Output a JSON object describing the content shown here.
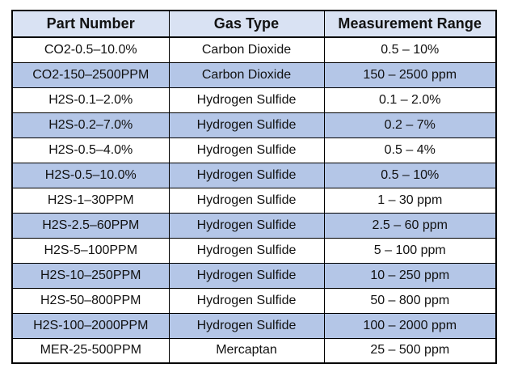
{
  "colors": {
    "header_bg": "#d9e2f3",
    "row_alt_bg": "#b4c6e7",
    "border": "#000000",
    "text": "#111111",
    "page_bg": "#ffffff"
  },
  "table": {
    "columns": [
      {
        "key": "part_number",
        "label": "Part Number"
      },
      {
        "key": "gas_type",
        "label": "Gas Type"
      },
      {
        "key": "measurement_range",
        "label": "Measurement Range"
      }
    ],
    "rows": [
      {
        "part_number": "CO2-0.5–10.0%",
        "gas_type": "Carbon Dioxide",
        "measurement_range": "0.5 – 10%"
      },
      {
        "part_number": "CO2-150–2500PPM",
        "gas_type": "Carbon Dioxide",
        "measurement_range": "150 – 2500 ppm"
      },
      {
        "part_number": "H2S-0.1–2.0%",
        "gas_type": "Hydrogen Sulfide",
        "measurement_range": "0.1 – 2.0%"
      },
      {
        "part_number": "H2S-0.2–7.0%",
        "gas_type": "Hydrogen Sulfide",
        "measurement_range": "0.2 – 7%"
      },
      {
        "part_number": "H2S-0.5–4.0%",
        "gas_type": "Hydrogen Sulfide",
        "measurement_range": "0.5 – 4%"
      },
      {
        "part_number": "H2S-0.5–10.0%",
        "gas_type": "Hydrogen Sulfide",
        "measurement_range": "0.5 – 10%"
      },
      {
        "part_number": "H2S-1–30PPM",
        "gas_type": "Hydrogen Sulfide",
        "measurement_range": "1 – 30 ppm"
      },
      {
        "part_number": "H2S-2.5–60PPM",
        "gas_type": "Hydrogen Sulfide",
        "measurement_range": "2.5 – 60 ppm"
      },
      {
        "part_number": "H2S-5–100PPM",
        "gas_type": "Hydrogen Sulfide",
        "measurement_range": "5 – 100 ppm"
      },
      {
        "part_number": "H2S-10–250PPM",
        "gas_type": "Hydrogen Sulfide",
        "measurement_range": "10 – 250 ppm"
      },
      {
        "part_number": "H2S-50–800PPM",
        "gas_type": "Hydrogen Sulfide",
        "measurement_range": "50 – 800 ppm"
      },
      {
        "part_number": "H2S-100–2000PPM",
        "gas_type": "Hydrogen Sulfide",
        "measurement_range": "100 – 2000 ppm"
      },
      {
        "part_number": "MER-25-500PPM",
        "gas_type": "Mercaptan",
        "measurement_range": "25 – 500 ppm"
      }
    ]
  }
}
